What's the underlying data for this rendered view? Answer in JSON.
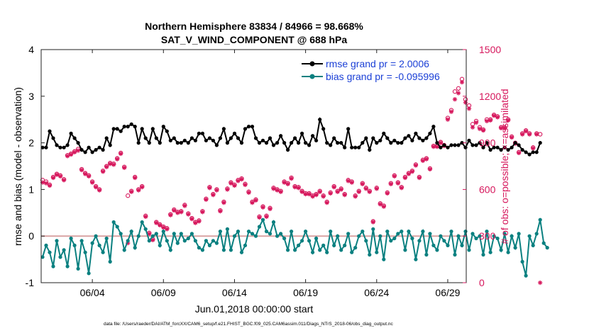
{
  "chart_data": {
    "type": "line",
    "title_line1": "Northern Hemisphere 83834 / 84966 = 98.668%",
    "title_line2": "SAT_V_WIND_COMPONENT @ 688 hPa",
    "xlabel": "Jun.01,2018 00:00:00 start",
    "ylabel_left": "rmse and bias (model - observation)",
    "ylabel_right": "# of obs: o=possible; ×=assimilated",
    "footer": "data file: /Users/raeder/DAI/ATM_forcXX/CAM6_setup/f.e21.FHIST_BGC.f09_025.CAM6assim.011/Diags_NTrS_2018-06/obs_diag_output.nc",
    "x_range": [
      0.4,
      30.3
    ],
    "ylim_left": [
      -1,
      4
    ],
    "ylim_right": [
      0,
      1500
    ],
    "x_ticks": [
      {
        "label": "06/04",
        "value": 4
      },
      {
        "label": "06/09",
        "value": 9
      },
      {
        "label": "06/14",
        "value": 14
      },
      {
        "label": "06/19",
        "value": 19
      },
      {
        "label": "06/24",
        "value": 24
      },
      {
        "label": "06/29",
        "value": 29
      }
    ],
    "y_ticks_left": [
      -1,
      0,
      1,
      2,
      3,
      4
    ],
    "y_ticks_right": [
      0,
      300,
      600,
      900,
      1200,
      1500
    ],
    "zero_line": 0,
    "grid": false,
    "legend_position": "top-right",
    "colors": {
      "rmse": "#000000",
      "bias": "#0a8080",
      "obs": "#d6175c",
      "zero_line": "#d9a3a3",
      "axes": "#222222",
      "legend_text": "#1a3fd6"
    },
    "series": [
      {
        "name": "rmse grand pr = 2.0006",
        "axis": "left",
        "x_start": 0.5,
        "x_step": 0.25,
        "values": [
          1.9,
          1.9,
          2.25,
          2.1,
          1.95,
          1.9,
          1.9,
          1.95,
          2.2,
          2.1,
          2.0,
          1.85,
          1.8,
          1.9,
          1.8,
          1.85,
          1.9,
          1.85,
          2.1,
          1.95,
          2.3,
          2.3,
          2.25,
          2.35,
          2.35,
          2.4,
          2.35,
          2.0,
          2.3,
          2.1,
          2.0,
          2.3,
          2.1,
          2.0,
          2.35,
          2.25,
          2.05,
          2.1,
          2.0,
          2.0,
          2.05,
          2.0,
          2.1,
          2.05,
          2.2,
          2.2,
          2.05,
          2.1,
          2.05,
          1.95,
          2.1,
          2.3,
          2.0,
          2.1,
          2.2,
          2.1,
          2.0,
          2.3,
          2.35,
          2.35,
          2.1,
          2.0,
          2.05,
          2.0,
          2.1,
          1.95,
          2.0,
          2.15,
          2.0,
          1.85,
          2.0,
          2.1,
          2.0,
          2.2,
          2.0,
          1.95,
          2.15,
          2.05,
          2.5,
          2.3,
          2.0,
          1.95,
          2.1,
          2.0,
          2.0,
          1.9,
          2.3,
          1.9,
          1.9,
          1.9,
          2.0,
          2.1,
          1.85,
          2.1,
          2.0,
          2.05,
          2.2,
          2.1,
          2.0,
          2.05,
          2.0,
          2.0,
          2.1,
          2.15,
          2.05,
          2.2,
          2.1,
          2.05,
          2.1,
          2.2,
          2.35,
          2.0,
          1.9,
          1.95,
          1.9,
          1.95,
          1.95,
          1.95,
          2.0,
          1.9,
          2.05,
          1.95,
          1.95,
          2.0,
          1.9,
          2.0,
          1.85,
          1.9,
          1.9,
          1.85,
          1.9,
          1.85,
          1.9,
          2.0,
          1.95,
          1.85,
          1.8,
          1.75,
          1.8,
          1.8,
          2.0
        ]
      },
      {
        "name": "bias grand pr = -0.095996",
        "axis": "left",
        "x_start": 0.5,
        "x_step": 0.25,
        "values": [
          -0.45,
          -0.2,
          -0.35,
          -0.65,
          -0.1,
          -0.45,
          -0.3,
          -0.65,
          -0.05,
          -0.2,
          -0.7,
          -0.1,
          -0.35,
          -0.8,
          -0.15,
          0.0,
          -0.2,
          -0.35,
          -0.05,
          -0.55,
          0.3,
          0.2,
          0.05,
          -0.3,
          -0.1,
          0.1,
          -0.25,
          0.0,
          0.3,
          0.15,
          -0.1,
          0.0,
          0.05,
          -0.2,
          0.1,
          -0.1,
          -0.3,
          0.05,
          -0.15,
          0.05,
          -0.1,
          -0.05,
          0.05,
          -0.1,
          -0.25,
          -0.3,
          -0.1,
          -0.2,
          -0.1,
          -0.15,
          0.1,
          -0.3,
          0.15,
          -0.3,
          0.0,
          0.1,
          -0.35,
          -0.2,
          0.1,
          0.05,
          0.0,
          0.2,
          0.35,
          0.1,
          0.05,
          0.3,
          0.0,
          0.05,
          -0.05,
          -0.3,
          0.1,
          -0.3,
          -0.2,
          -0.1,
          0.1,
          -0.1,
          -0.35,
          -0.05,
          -0.3,
          -0.2,
          -0.35,
          0.1,
          -0.2,
          0.0,
          -0.3,
          -0.2,
          0.05,
          -0.35,
          -0.25,
          0.0,
          0.1,
          -0.1,
          -0.4,
          0.15,
          -0.35,
          0.0,
          -0.5,
          0.1,
          -0.1,
          -0.05,
          0.05,
          0.1,
          -0.3,
          0.1,
          -0.05,
          -0.5,
          -0.1,
          0.1,
          -0.4,
          0.05,
          -0.2,
          -0.3,
          0.0,
          -0.1,
          -0.2,
          0.1,
          -0.4,
          0.0,
          -0.2,
          0.1,
          -0.3,
          0.05,
          -0.05,
          0.0,
          -0.4,
          0.1,
          -0.35,
          0.0,
          -0.05,
          -0.3,
          0.05,
          -0.35,
          0.0,
          -0.25,
          0.05,
          -0.55,
          -0.85,
          0.0,
          -0.2,
          0.05,
          0.35,
          -0.15,
          -0.25
        ]
      },
      {
        "name": "obs possible",
        "axis": "right",
        "marker": "circle",
        "x_start": 0.5,
        "x_step": 0.25,
        "values": [
          660,
          650,
          630,
          680,
          700,
          690,
          665,
          820,
          830,
          845,
          860,
          730,
          705,
          690,
          650,
          620,
          600,
          720,
          750,
          770,
          765,
          800,
          835,
          745,
          560,
          590,
          680,
          600,
          620,
          430,
          320,
          280,
          390,
          375,
          360,
          350,
          440,
          470,
          455,
          460,
          500,
          445,
          415,
          390,
          400,
          460,
          540,
          615,
          570,
          600,
          465,
          520,
          605,
          645,
          630,
          660,
          670,
          635,
          585,
          520,
          535,
          425,
          490,
          430,
          480,
          610,
          600,
          590,
          650,
          640,
          675,
          620,
          615,
          590,
          575,
          575,
          560,
          570,
          590,
          560,
          520,
          580,
          620,
          590,
          605,
          570,
          660,
          650,
          560,
          590,
          640,
          610,
          590,
          395,
          610,
          510,
          495,
          580,
          640,
          690,
          645,
          615,
          680,
          705,
          720,
          760,
          680,
          790,
          800,
          735,
          880,
          880,
          905,
          885,
          1060,
          1110,
          1230,
          1250,
          1310,
          1180,
          1140,
          1020,
          1040,
          1000,
          985,
          1050,
          1050,
          1080,
          1070,
          1000,
          1000,
          1050,
          940,
          900,
          840,
          960,
          980,
          960,
          870,
          960,
          955
        ]
      },
      {
        "name": "obs assimilated",
        "axis": "right",
        "marker": "asterisk",
        "x_start": 0.5,
        "x_step": 0.25,
        "values": [
          645,
          640,
          625,
          675,
          695,
          685,
          660,
          815,
          825,
          840,
          850,
          725,
          700,
          685,
          645,
          615,
          595,
          715,
          745,
          765,
          760,
          795,
          830,
          740,
          255,
          585,
          675,
          595,
          615,
          425,
          315,
          275,
          385,
          370,
          355,
          345,
          435,
          465,
          450,
          455,
          495,
          440,
          410,
          385,
          395,
          455,
          535,
          610,
          565,
          595,
          460,
          515,
          600,
          640,
          625,
          655,
          665,
          630,
          580,
          515,
          530,
          420,
          485,
          425,
          475,
          605,
          595,
          585,
          645,
          635,
          670,
          615,
          610,
          585,
          570,
          570,
          555,
          565,
          585,
          555,
          515,
          575,
          615,
          585,
          600,
          565,
          655,
          645,
          555,
          585,
          635,
          605,
          585,
          390,
          605,
          505,
          490,
          575,
          635,
          685,
          640,
          610,
          675,
          700,
          715,
          755,
          675,
          785,
          795,
          730,
          875,
          875,
          900,
          880,
          1050,
          1100,
          1180,
          1220,
          1290,
          1160,
          1120,
          1000,
          1030,
          990,
          980,
          1040,
          1045,
          1075,
          1065,
          995,
          995,
          1045,
          935,
          895,
          835,
          955,
          975,
          955,
          865,
          955,
          0
        ]
      }
    ]
  }
}
